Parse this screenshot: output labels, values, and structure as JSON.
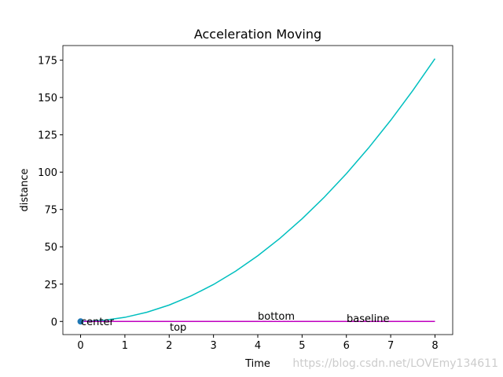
{
  "chart_data": {
    "type": "line",
    "title": "Acceleration Moving",
    "xlabel": "Time",
    "ylabel": "distance",
    "series": [
      {
        "type": "line",
        "color": "#00bfbf",
        "x": [
          0,
          0.5,
          1,
          1.5,
          2,
          2.5,
          3,
          3.5,
          4,
          4.5,
          5,
          5.5,
          6,
          6.5,
          7,
          7.5,
          8
        ],
        "values": [
          0,
          0.6875,
          2.75,
          6.1875,
          11,
          17.1875,
          24.75,
          33.6875,
          44,
          55.6875,
          68.75,
          83.1875,
          99,
          116.1875,
          134.75,
          154.6875,
          176
        ]
      },
      {
        "type": "line",
        "color": "#bf00bf",
        "x": [
          0,
          8
        ],
        "values": [
          0,
          0
        ]
      },
      {
        "type": "scatter",
        "color": "#1f77b4",
        "x": [
          0
        ],
        "values": [
          0
        ]
      }
    ],
    "annotations": [
      "center",
      "top",
      "bottom",
      "baseline"
    ],
    "xlim": [
      -0.4,
      8.4
    ],
    "xticks": [
      0,
      1,
      2,
      3,
      4,
      5,
      6,
      7,
      8
    ],
    "ylim": [
      -8.8,
      184.8
    ],
    "yticks": [
      0,
      25,
      50,
      75,
      100,
      125,
      150,
      175
    ],
    "grid": false
  },
  "watermark": "https://blog.csdn.net/LOVEmy134611"
}
